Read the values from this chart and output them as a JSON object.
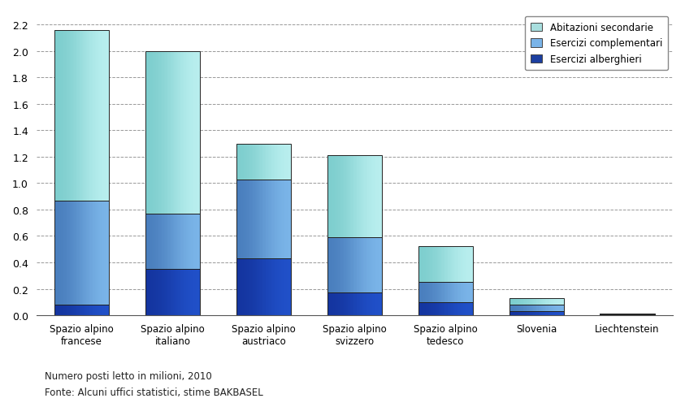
{
  "categories": [
    "Spazio alpino\nfrancese",
    "Spazio alpino\nitaliano",
    "Spazio alpino\naustriaco",
    "Spazio alpino\nsvizzero",
    "Spazio alpino\ntedesco",
    "Slovenia",
    "Liechtenstein"
  ],
  "alberghieri": [
    0.08,
    0.35,
    0.43,
    0.17,
    0.1,
    0.03,
    0.005
  ],
  "complementari": [
    0.79,
    0.42,
    0.6,
    0.42,
    0.15,
    0.05,
    0.005
  ],
  "secondarie": [
    1.29,
    1.23,
    0.27,
    0.62,
    0.27,
    0.05,
    0.005
  ],
  "color_alberghieri_dark": "#1435a0",
  "color_alberghieri_mid": "#2050c8",
  "color_complementari_dark": "#4a7fbe",
  "color_complementari_mid": "#7ab4e8",
  "color_secondarie_dark": "#7ecece",
  "color_secondarie_mid": "#b8eeee",
  "legend_labels": [
    "Abitazioni secondarie",
    "Esercizi complementari",
    "Esercizi alberghieri"
  ],
  "legend_colors_sec": "#a8dede",
  "legend_colors_com": "#7ab4e8",
  "legend_colors_alb": "#1c3fa0",
  "ylim": [
    0,
    2.3
  ],
  "yticks": [
    0.0,
    0.2,
    0.4,
    0.6,
    0.8,
    1.0,
    1.2,
    1.4,
    1.6,
    1.8,
    2.0,
    2.2
  ],
  "footnote1": "Numero posti letto in milioni, 2010",
  "footnote2": "Fonte: Alcuni uffici statistici, stime BAKBASEL",
  "background_color": "#ffffff",
  "bar_edge_color": "#222222",
  "bar_width": 0.6
}
